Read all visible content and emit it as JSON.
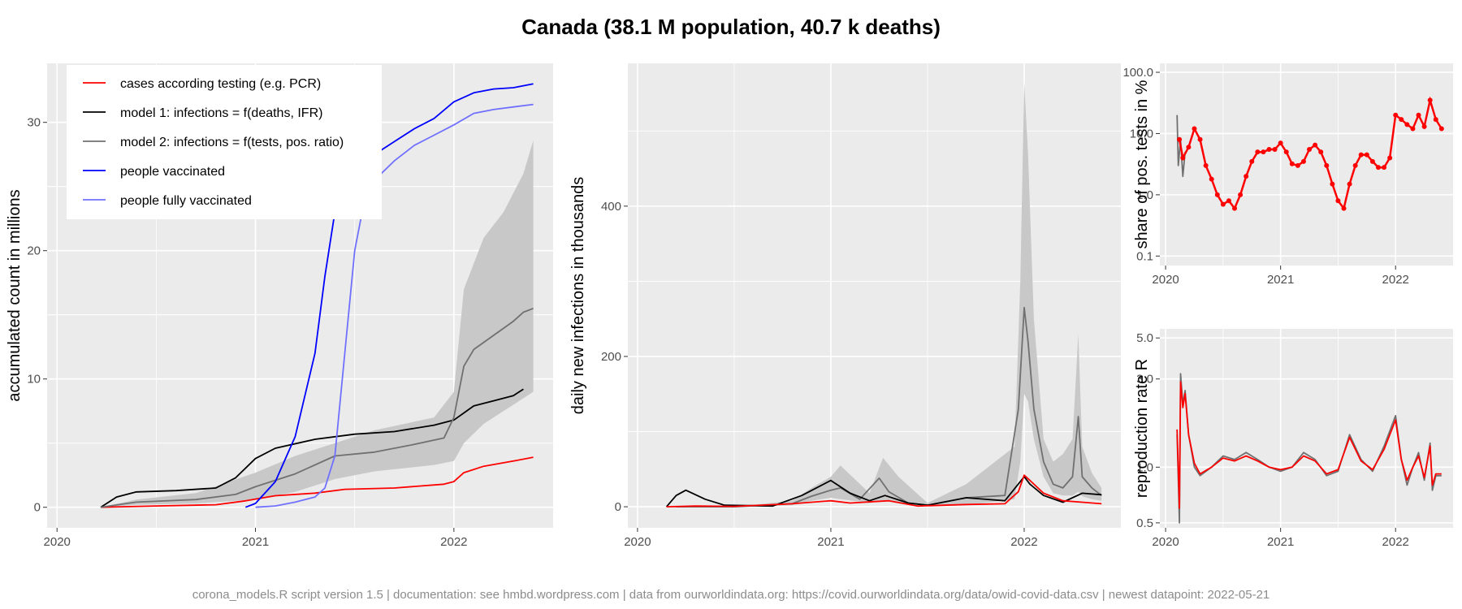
{
  "title": "Canada (38.1 M population, 40.7 k deaths)",
  "footer": "corona_models.R script version 1.5 | documentation: see hmbd.wordpress.com | data from ourworldindata.org: https://covid.ourworldindata.org/data/owid-covid-data.csv | newest datapoint: 2022-05-21",
  "colors": {
    "cases": "#ff0000",
    "model1": "#000000",
    "model2": "#707070",
    "vaccinated": "#0000ff",
    "fully_vaccinated": "#7070ff",
    "band": "#c8c8c8",
    "panel": "#ebebeb",
    "grid": "#ffffff"
  },
  "chart_data": [
    {
      "id": "accumulated",
      "type": "line",
      "ylabel": "accumulated count in millions",
      "xlim": [
        2019.95,
        2022.5
      ],
      "ylim": [
        -1.6,
        34.6
      ],
      "x_ticks": [
        2020,
        2021,
        2022
      ],
      "x_tick_labels": [
        "2020",
        "2021",
        "2022"
      ],
      "y_ticks": [
        0,
        10,
        20,
        30
      ],
      "y_tick_labels": [
        "0",
        "10",
        "20",
        "30"
      ],
      "legend": {
        "placement": "top-left",
        "entries": [
          {
            "label": "cases according testing (e.g. PCR)",
            "color_key": "cases"
          },
          {
            "label": "model 1: infections = f(deaths, IFR)",
            "color_key": "model1"
          },
          {
            "label": "model 2: infections = f(tests, pos. ratio)",
            "color_key": "model2"
          },
          {
            "label": "people vaccinated",
            "color_key": "vaccinated"
          },
          {
            "label": "people fully vaccinated",
            "color_key": "fully_vaccinated"
          }
        ]
      },
      "bands": [
        {
          "color_key": "band",
          "x": [
            2020.22,
            2020.4,
            2020.7,
            2021.0,
            2021.2,
            2021.4,
            2021.6,
            2021.9,
            2022.0,
            2022.05,
            2022.15,
            2022.25,
            2022.35,
            2022.4
          ],
          "lower": [
            0,
            0.2,
            0.3,
            0.6,
            1.2,
            2.2,
            2.8,
            3.3,
            3.6,
            5.0,
            6.5,
            7.5,
            8.5,
            9.0
          ],
          "upper": [
            0,
            0.6,
            1.1,
            2.7,
            4.0,
            5.0,
            6.0,
            7.0,
            9.0,
            17.0,
            21.0,
            23.0,
            26.0,
            28.6
          ]
        }
      ],
      "series": [
        {
          "color_key": "cases",
          "x": [
            2020.22,
            2020.5,
            2020.8,
            2020.95,
            2021.1,
            2021.3,
            2021.45,
            2021.7,
            2021.95,
            2022.0,
            2022.05,
            2022.15,
            2022.3,
            2022.4
          ],
          "y": [
            0,
            0.1,
            0.2,
            0.5,
            0.9,
            1.1,
            1.4,
            1.5,
            1.8,
            2.0,
            2.7,
            3.2,
            3.6,
            3.9
          ]
        },
        {
          "color_key": "model1",
          "x": [
            2020.22,
            2020.3,
            2020.4,
            2020.6,
            2020.8,
            2020.9,
            2021.0,
            2021.1,
            2021.3,
            2021.5,
            2021.7,
            2021.9,
            2022.0,
            2022.1,
            2022.2,
            2022.3,
            2022.35
          ],
          "y": [
            0,
            0.8,
            1.2,
            1.3,
            1.5,
            2.3,
            3.8,
            4.6,
            5.3,
            5.7,
            5.9,
            6.4,
            6.8,
            7.9,
            8.3,
            8.7,
            9.2
          ]
        },
        {
          "color_key": "model2",
          "x": [
            2020.22,
            2020.4,
            2020.7,
            2020.9,
            2021.0,
            2021.2,
            2021.4,
            2021.6,
            2021.8,
            2021.95,
            2022.0,
            2022.05,
            2022.1,
            2022.2,
            2022.3,
            2022.35,
            2022.4
          ],
          "y": [
            0,
            0.4,
            0.6,
            1.0,
            1.6,
            2.6,
            4.0,
            4.3,
            4.9,
            5.4,
            7.0,
            11.0,
            12.3,
            13.4,
            14.5,
            15.2,
            15.5
          ]
        },
        {
          "color_key": "vaccinated",
          "x": [
            2020.95,
            2021.0,
            2021.1,
            2021.2,
            2021.3,
            2021.35,
            2021.4,
            2021.45,
            2021.5,
            2021.55,
            2021.6,
            2021.7,
            2021.8,
            2021.9,
            2022.0,
            2022.1,
            2022.2,
            2022.3,
            2022.4
          ],
          "y": [
            0,
            0.3,
            2.0,
            5.5,
            12.0,
            18.0,
            23.0,
            25.5,
            26.5,
            27.0,
            27.5,
            28.5,
            29.5,
            30.3,
            31.6,
            32.3,
            32.6,
            32.7,
            33.0
          ]
        },
        {
          "color_key": "fully_vaccinated",
          "x": [
            2021.0,
            2021.1,
            2021.2,
            2021.3,
            2021.35,
            2021.4,
            2021.45,
            2021.5,
            2021.55,
            2021.6,
            2021.7,
            2021.8,
            2021.9,
            2022.0,
            2022.1,
            2022.2,
            2022.3,
            2022.4
          ],
          "y": [
            0,
            0.1,
            0.4,
            0.8,
            1.5,
            4.0,
            12.0,
            20.0,
            24.0,
            25.5,
            27.0,
            28.2,
            29.0,
            29.8,
            30.7,
            31.0,
            31.2,
            31.4
          ]
        }
      ]
    },
    {
      "id": "daily",
      "type": "line",
      "ylabel": "daily new infections in thousands",
      "xlim": [
        2019.95,
        2022.5
      ],
      "ylim": [
        -28,
        590
      ],
      "x_ticks": [
        2020,
        2021,
        2022
      ],
      "x_tick_labels": [
        "2020",
        "2021",
        "2022"
      ],
      "y_ticks": [
        0,
        200,
        400
      ],
      "y_tick_labels": [
        "0",
        "200",
        "400"
      ],
      "bands": [
        {
          "color_key": "band",
          "x": [
            2020.2,
            2020.5,
            2020.8,
            2020.9,
            2021.0,
            2021.05,
            2021.2,
            2021.27,
            2021.35,
            2021.5,
            2021.7,
            2021.95,
            2021.98,
            2022.0,
            2022.02,
            2022.05,
            2022.1,
            2022.15,
            2022.2,
            2022.25,
            2022.28,
            2022.3,
            2022.35,
            2022.4
          ],
          "lower": [
            0,
            0,
            2,
            8,
            12,
            10,
            5,
            8,
            6,
            1,
            2,
            10,
            60,
            150,
            140,
            90,
            40,
            18,
            15,
            15,
            20,
            14,
            10,
            8
          ],
          "upper": [
            0,
            0,
            8,
            25,
            40,
            55,
            18,
            65,
            40,
            5,
            30,
            80,
            300,
            565,
            470,
            250,
            90,
            60,
            70,
            90,
            230,
            80,
            45,
            25
          ]
        }
      ],
      "series": [
        {
          "color_key": "model2",
          "x": [
            2020.2,
            2020.5,
            2020.8,
            2020.9,
            2021.0,
            2021.05,
            2021.15,
            2021.25,
            2021.3,
            2021.4,
            2021.5,
            2021.7,
            2021.9,
            2021.97,
            2022.0,
            2022.02,
            2022.05,
            2022.1,
            2022.15,
            2022.2,
            2022.25,
            2022.28,
            2022.3,
            2022.35,
            2022.4
          ],
          "y": [
            0,
            0,
            4,
            14,
            22,
            25,
            10,
            38,
            20,
            5,
            2,
            12,
            15,
            130,
            265,
            220,
            130,
            60,
            30,
            25,
            40,
            120,
            40,
            25,
            15
          ]
        },
        {
          "color_key": "model1",
          "x": [
            2020.15,
            2020.2,
            2020.25,
            2020.35,
            2020.45,
            2020.7,
            2020.85,
            2021.0,
            2021.1,
            2021.2,
            2021.28,
            2021.4,
            2021.5,
            2021.7,
            2021.9,
            2022.0,
            2022.03,
            2022.1,
            2022.2,
            2022.3,
            2022.4
          ],
          "y": [
            0,
            15,
            22,
            10,
            2,
            1,
            15,
            35,
            18,
            8,
            15,
            5,
            2,
            12,
            8,
            40,
            30,
            15,
            6,
            18,
            16
          ]
        },
        {
          "color_key": "cases",
          "x": [
            2020.15,
            2020.3,
            2020.5,
            2020.8,
            2021.0,
            2021.1,
            2021.3,
            2021.45,
            2021.7,
            2021.9,
            2021.97,
            2022.0,
            2022.03,
            2022.1,
            2022.2,
            2022.3,
            2022.4
          ],
          "y": [
            0,
            1,
            0.5,
            4,
            8,
            5,
            8,
            1,
            3,
            4,
            20,
            42,
            35,
            18,
            8,
            6,
            4
          ]
        }
      ]
    },
    {
      "id": "positive_share",
      "type": "scatter",
      "ylabel": "share of pos. tests in %",
      "yscale": "log",
      "xlim": [
        2019.95,
        2022.5
      ],
      "ylim": [
        0.07,
        140
      ],
      "x_ticks": [
        2020,
        2021,
        2022
      ],
      "x_tick_labels": [
        "2020",
        "2021",
        "2022"
      ],
      "y_ticks": [
        0.1,
        1,
        10,
        100
      ],
      "y_tick_labels": [
        "0.1",
        "1.0",
        "10.0",
        "100.0"
      ],
      "series": [
        {
          "color_key": "model2",
          "style": "line",
          "x": [
            2020.1,
            2020.11,
            2020.13,
            2020.15,
            2020.17
          ],
          "y": [
            20,
            3,
            8,
            2,
            5
          ]
        },
        {
          "color_key": "cases",
          "style": "points",
          "x": [
            2020.12,
            2020.15,
            2020.2,
            2020.25,
            2020.3,
            2020.35,
            2020.4,
            2020.45,
            2020.5,
            2020.55,
            2020.6,
            2020.65,
            2020.7,
            2020.75,
            2020.8,
            2020.85,
            2020.9,
            2020.95,
            2021.0,
            2021.05,
            2021.1,
            2021.15,
            2021.2,
            2021.25,
            2021.3,
            2021.35,
            2021.4,
            2021.45,
            2021.5,
            2021.55,
            2021.6,
            2021.65,
            2021.7,
            2021.75,
            2021.8,
            2021.85,
            2021.9,
            2021.95,
            2022.0,
            2022.05,
            2022.1,
            2022.15,
            2022.2,
            2022.25,
            2022.3,
            2022.35,
            2022.4
          ],
          "y": [
            8,
            4,
            6,
            12,
            8,
            3,
            1.8,
            1.0,
            0.7,
            0.8,
            0.6,
            1.0,
            2.0,
            3.5,
            5.0,
            5.0,
            5.5,
            5.5,
            7.0,
            5.0,
            3.2,
            3.0,
            3.5,
            5.5,
            6.5,
            5.0,
            3.0,
            1.5,
            0.8,
            0.6,
            1.5,
            3.0,
            4.5,
            4.5,
            3.5,
            2.8,
            2.8,
            4.0,
            20.0,
            17.0,
            14.0,
            12.0,
            20.0,
            13.0,
            35.0,
            17.0,
            12.0
          ]
        }
      ]
    },
    {
      "id": "reproduction",
      "type": "line",
      "ylabel": "reproduction rate R",
      "yscale": "log",
      "xlim": [
        2019.95,
        2022.5
      ],
      "ylim": [
        0.47,
        5.6
      ],
      "x_ticks": [
        2020,
        2021,
        2022
      ],
      "x_tick_labels": [
        "2020",
        "2021",
        "2022"
      ],
      "y_ticks": [
        0.5,
        1,
        3,
        5
      ],
      "y_tick_labels": [
        "0.5",
        "1.0",
        "3.0",
        "5.0"
      ],
      "series": [
        {
          "color_key": "model2",
          "x": [
            2020.1,
            2020.12,
            2020.13,
            2020.15,
            2020.17,
            2020.2,
            2020.25,
            2020.3,
            2020.4,
            2020.5,
            2020.6,
            2020.7,
            2020.8,
            2020.9,
            2021.0,
            2021.1,
            2021.2,
            2021.3,
            2021.4,
            2021.5,
            2021.6,
            2021.7,
            2021.8,
            2021.9,
            2022.0,
            2022.05,
            2022.1,
            2022.15,
            2022.2,
            2022.25,
            2022.3,
            2022.32,
            2022.35,
            2022.4
          ],
          "y": [
            1.5,
            0.5,
            3.2,
            2.2,
            2.6,
            1.5,
            1.0,
            0.9,
            1.0,
            1.15,
            1.1,
            1.2,
            1.1,
            1.0,
            0.95,
            1.0,
            1.2,
            1.1,
            0.9,
            0.95,
            1.5,
            1.1,
            0.95,
            1.3,
            1.9,
            1.1,
            0.8,
            1.0,
            1.2,
            0.85,
            1.35,
            0.75,
            0.9,
            0.9
          ]
        },
        {
          "color_key": "cases",
          "x": [
            2020.1,
            2020.12,
            2020.13,
            2020.15,
            2020.17,
            2020.2,
            2020.25,
            2020.3,
            2020.4,
            2020.5,
            2020.6,
            2020.7,
            2020.8,
            2020.9,
            2021.0,
            2021.1,
            2021.2,
            2021.3,
            2021.4,
            2021.5,
            2021.6,
            2021.7,
            2021.8,
            2021.9,
            2022.0,
            2022.05,
            2022.1,
            2022.15,
            2022.2,
            2022.25,
            2022.3,
            2022.32,
            2022.35,
            2022.4
          ],
          "y": [
            1.6,
            0.6,
            2.9,
            2.1,
            2.5,
            1.5,
            1.05,
            0.92,
            1.0,
            1.12,
            1.08,
            1.15,
            1.08,
            1.0,
            0.97,
            1.0,
            1.15,
            1.08,
            0.92,
            0.97,
            1.45,
            1.08,
            0.97,
            1.25,
            1.8,
            1.1,
            0.85,
            1.0,
            1.15,
            0.88,
            1.3,
            0.8,
            0.92,
            0.92
          ]
        }
      ]
    }
  ]
}
